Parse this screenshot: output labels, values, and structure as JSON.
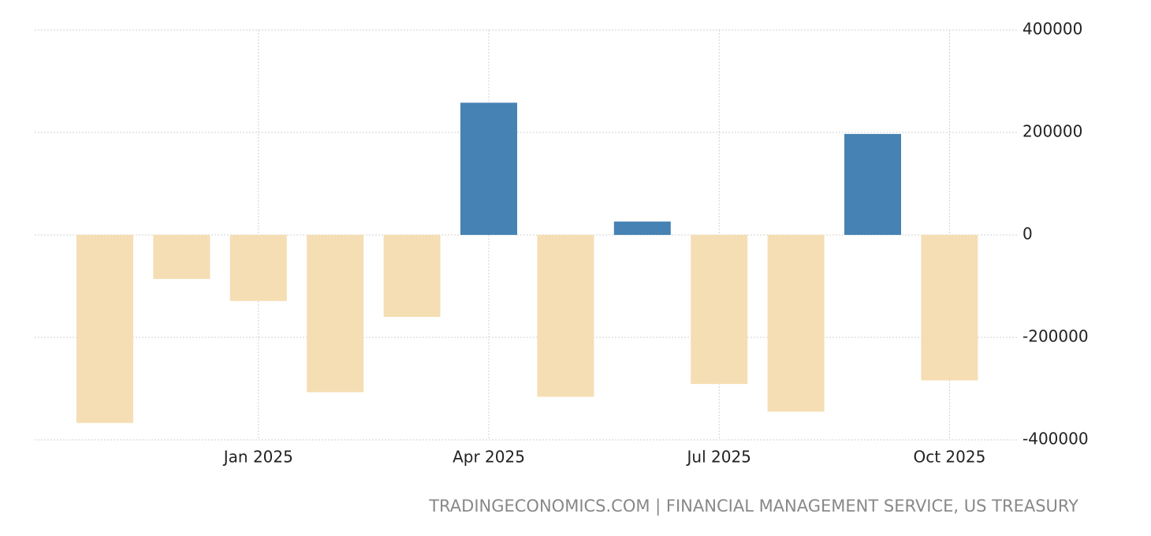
{
  "chart_data": {
    "type": "bar",
    "categories": [
      null,
      null,
      "Jan 2025",
      null,
      null,
      "Apr 2025",
      null,
      null,
      "Jul 2025",
      null,
      null,
      "Oct 2025"
    ],
    "values": [
      -367000,
      -86000,
      -129000,
      -307000,
      -160000,
      258000,
      -316000,
      26000,
      -291000,
      -345000,
      197000,
      -284000
    ],
    "positive_color": "#4682b4",
    "negative_color": "#f5deb3",
    "ylim": [
      -400000,
      400000
    ],
    "yticks": [
      -400000,
      -200000,
      0,
      200000,
      400000
    ],
    "grid": true,
    "source": "TRADINGECONOMICS.COM | FINANCIAL MANAGEMENT SERVICE, US TREASURY"
  }
}
